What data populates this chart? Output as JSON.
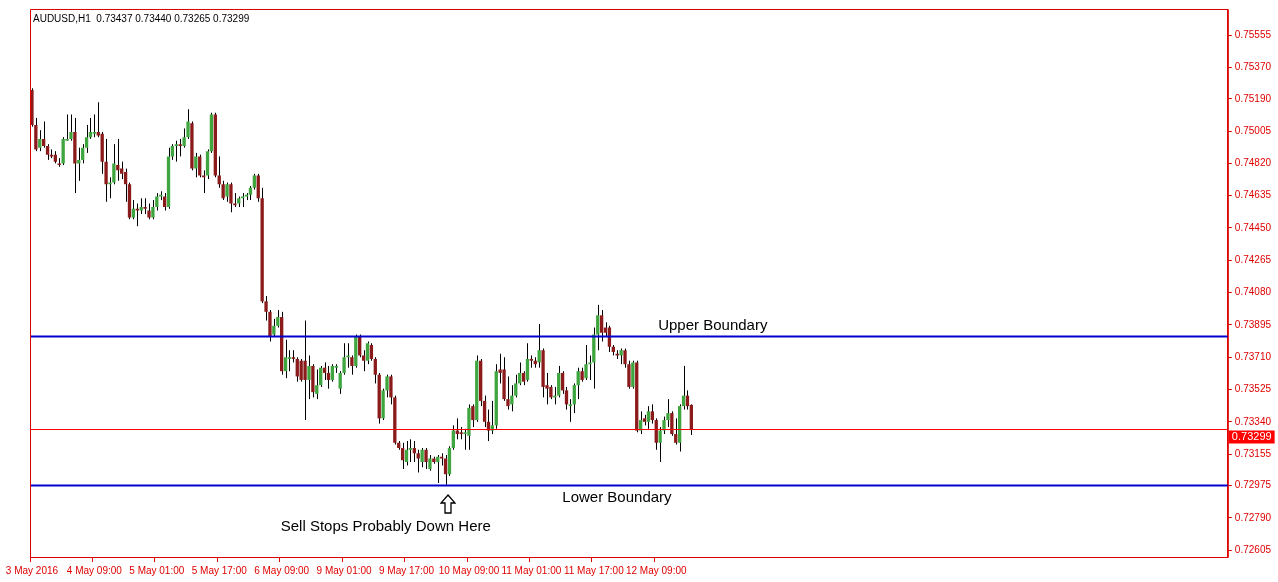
{
  "chart_data": {
    "type": "candlestick",
    "title": "AUDUSD,H1  0.73437 0.73440 0.73265 0.73299",
    "categories": [
      "3 May 2016",
      null,
      null,
      null,
      null,
      null,
      null,
      null,
      null,
      null,
      null,
      null,
      null,
      null,
      null,
      null,
      "4 May 09:00",
      null,
      null,
      null,
      null,
      null,
      null,
      null,
      null,
      null,
      null,
      null,
      null,
      null,
      null,
      null,
      "5 May 01:00",
      null,
      null,
      null,
      null,
      null,
      null,
      null,
      null,
      null,
      null,
      null,
      null,
      null,
      null,
      null,
      "5 May 17:00",
      null,
      null,
      null,
      null,
      null,
      null,
      null,
      null,
      null,
      null,
      null,
      null,
      null,
      null,
      null,
      "6 May 09:00",
      null,
      null,
      null,
      null,
      null,
      null,
      null,
      null,
      null,
      null,
      null,
      null,
      null,
      null,
      null,
      "9 May 01:00",
      null,
      null,
      null,
      null,
      null,
      null,
      null,
      null,
      null,
      null,
      null,
      null,
      null,
      null,
      null,
      "9 May 17:00",
      null,
      null,
      null,
      null,
      null,
      null,
      null,
      null,
      null,
      null,
      null,
      null,
      null,
      null,
      null,
      "10 May 09:00",
      null,
      null,
      null,
      null,
      null,
      null,
      null,
      null,
      null,
      null,
      null,
      null,
      null,
      null,
      null,
      "11 May 01:00",
      null,
      null,
      null,
      null,
      null,
      null,
      null,
      null,
      null,
      null,
      null,
      null,
      null,
      null,
      null,
      "11 May 17:00",
      null,
      null,
      null,
      null,
      null,
      null,
      null,
      null,
      null,
      null,
      null,
      null,
      null,
      null,
      null,
      "12 May 09:00",
      null,
      null,
      null,
      null,
      null,
      null,
      null,
      null,
      null,
      null,
      null,
      null,
      null,
      null,
      null,
      null,
      null,
      null,
      null,
      null,
      null,
      null,
      null,
      null,
      null,
      null,
      null,
      null,
      null,
      null,
      null,
      null,
      null,
      null,
      null,
      null,
      null,
      null,
      null,
      null,
      null,
      null,
      null,
      null,
      null,
      null,
      null,
      null,
      null,
      null,
      null,
      null,
      null,
      null,
      null,
      null,
      null,
      null,
      null,
      null,
      null,
      null,
      null,
      null,
      null,
      null,
      null,
      null,
      null,
      null,
      null,
      null,
      null,
      null,
      null,
      null,
      null,
      null,
      null,
      null,
      null,
      null,
      null,
      null,
      null,
      null,
      null,
      null,
      null,
      null,
      null,
      null,
      null,
      null,
      null,
      null,
      null,
      null,
      null,
      null,
      null,
      null,
      null,
      null,
      null,
      null,
      null,
      null,
      null,
      null,
      null,
      null,
      null,
      null,
      null,
      null,
      null,
      null,
      null,
      null,
      null,
      null,
      null,
      null,
      null,
      null,
      null,
      null,
      null,
      null,
      null,
      null,
      null,
      null,
      null,
      null,
      null,
      null,
      null,
      null,
      null,
      null,
      null,
      null,
      null,
      null
    ],
    "ohlc": [
      [
        0.7524,
        0.7525,
        0.7503,
        0.7504
      ],
      [
        0.7504,
        0.7508,
        0.7489,
        0.749
      ],
      [
        0.7491,
        0.7501,
        0.7489,
        0.7496
      ],
      [
        0.7496,
        0.7506,
        0.7491,
        0.7492
      ],
      [
        0.7492,
        0.7493,
        0.7484,
        0.7487
      ],
      [
        0.7487,
        0.749,
        0.7485,
        0.7486
      ],
      [
        0.7487,
        0.7489,
        0.7482,
        0.7483
      ],
      [
        0.7482,
        0.7485,
        0.748,
        0.7481
      ],
      [
        0.7482,
        0.7497,
        0.7481,
        0.7496
      ],
      [
        0.7495,
        0.751,
        0.7495,
        0.7496
      ],
      [
        0.7496,
        0.751,
        0.7495,
        0.75
      ],
      [
        0.75,
        0.7508,
        0.7465,
        0.7482
      ],
      [
        0.7482,
        0.7491,
        0.7472,
        0.7484
      ],
      [
        0.7484,
        0.7493,
        0.7482,
        0.7491
      ],
      [
        0.7491,
        0.7504,
        0.7488,
        0.7497
      ],
      [
        0.7497,
        0.7508,
        0.7496,
        0.75
      ],
      [
        0.7499,
        0.751,
        0.7497,
        0.75
      ],
      [
        0.75,
        0.7517,
        0.7497,
        0.7498
      ],
      [
        0.7499,
        0.75,
        0.7476,
        0.7483
      ],
      [
        0.7483,
        0.7496,
        0.746,
        0.747
      ],
      [
        0.747,
        0.7474,
        0.7462,
        0.7471
      ],
      [
        0.7471,
        0.7493,
        0.747,
        0.7482
      ],
      [
        0.7481,
        0.7496,
        0.7472,
        0.7478
      ],
      [
        0.7479,
        0.7483,
        0.7473,
        0.7476
      ],
      [
        0.7477,
        0.7479,
        0.746,
        0.747
      ],
      [
        0.747,
        0.7471,
        0.745,
        0.7451
      ],
      [
        0.7451,
        0.7461,
        0.745,
        0.7456
      ],
      [
        0.7456,
        0.7459,
        0.7446,
        0.7455
      ],
      [
        0.7455,
        0.7462,
        0.7453,
        0.7457
      ],
      [
        0.7457,
        0.7462,
        0.7453,
        0.7456
      ],
      [
        0.7455,
        0.7459,
        0.745,
        0.7451
      ],
      [
        0.7451,
        0.7461,
        0.745,
        0.7457
      ],
      [
        0.7457,
        0.7465,
        0.7455,
        0.7463
      ],
      [
        0.7463,
        0.7466,
        0.7461,
        0.7464
      ],
      [
        0.7463,
        0.7465,
        0.7455,
        0.7457
      ],
      [
        0.7457,
        0.7491,
        0.7456,
        0.7486
      ],
      [
        0.7486,
        0.7493,
        0.7484,
        0.7492
      ],
      [
        0.7492,
        0.7495,
        0.7483,
        0.7493
      ],
      [
        0.7493,
        0.7496,
        0.7486,
        0.7492
      ],
      [
        0.7492,
        0.7502,
        0.7491,
        0.7497
      ],
      [
        0.7497,
        0.7513,
        0.7496,
        0.7506
      ],
      [
        0.7505,
        0.7506,
        0.7478,
        0.7479
      ],
      [
        0.7479,
        0.7488,
        0.7474,
        0.7486
      ],
      [
        0.7486,
        0.7487,
        0.7474,
        0.7475
      ],
      [
        0.7475,
        0.7478,
        0.7465,
        0.7474
      ],
      [
        0.7475,
        0.749,
        0.7473,
        0.7489
      ],
      [
        0.7489,
        0.7511,
        0.7488,
        0.751
      ],
      [
        0.751,
        0.7511,
        0.7474,
        0.7475
      ],
      [
        0.7475,
        0.7486,
        0.7468,
        0.747
      ],
      [
        0.747,
        0.7472,
        0.7461,
        0.7462
      ],
      [
        0.7463,
        0.7471,
        0.746,
        0.747
      ],
      [
        0.747,
        0.7471,
        0.7454,
        0.7459
      ],
      [
        0.7459,
        0.7465,
        0.7457,
        0.7458
      ],
      [
        0.7459,
        0.7463,
        0.7457,
        0.7462
      ],
      [
        0.7462,
        0.7465,
        0.7457,
        0.7463
      ],
      [
        0.7463,
        0.7465,
        0.7461,
        0.7464
      ],
      [
        0.7464,
        0.7469,
        0.7461,
        0.7468
      ],
      [
        0.7468,
        0.7476,
        0.7467,
        0.7475
      ],
      [
        0.7475,
        0.7476,
        0.746,
        0.7462
      ],
      [
        0.7462,
        0.7468,
        0.7402,
        0.7403
      ],
      [
        0.7403,
        0.7406,
        0.7392,
        0.7397
      ],
      [
        0.7397,
        0.7398,
        0.738,
        0.7383
      ],
      [
        0.7384,
        0.7393,
        0.7383,
        0.7389
      ],
      [
        0.7389,
        0.7398,
        0.7388,
        0.7394
      ],
      [
        0.7394,
        0.7397,
        0.7361,
        0.7363
      ],
      [
        0.7363,
        0.7381,
        0.7359,
        0.7371
      ],
      [
        0.737,
        0.7375,
        0.7363,
        0.7371
      ],
      [
        0.7371,
        0.7375,
        0.7368,
        0.737
      ],
      [
        0.737,
        0.7371,
        0.7357,
        0.736
      ],
      [
        0.7369,
        0.737,
        0.7357,
        0.7358
      ],
      [
        0.7369,
        0.7392,
        0.7335,
        0.7358
      ],
      [
        0.7358,
        0.7372,
        0.7347,
        0.7366
      ],
      [
        0.7366,
        0.7367,
        0.7348,
        0.7351
      ],
      [
        0.735,
        0.7364,
        0.7347,
        0.7355
      ],
      [
        0.7355,
        0.7366,
        0.7354,
        0.7365
      ],
      [
        0.7365,
        0.7368,
        0.7358,
        0.7362
      ],
      [
        0.7362,
        0.7366,
        0.7353,
        0.7358
      ],
      [
        0.7358,
        0.7367,
        0.7357,
        0.7366
      ],
      [
        0.7365,
        0.7367,
        0.7362,
        0.7366
      ],
      [
        0.7353,
        0.7363,
        0.735,
        0.7362
      ],
      [
        0.7362,
        0.7379,
        0.7361,
        0.7371
      ],
      [
        0.7371,
        0.7379,
        0.7365,
        0.7372
      ],
      [
        0.7371,
        0.7372,
        0.7361,
        0.7366
      ],
      [
        0.7366,
        0.7384,
        0.7365,
        0.7383
      ],
      [
        0.7383,
        0.7384,
        0.7371,
        0.7372
      ],
      [
        0.7372,
        0.7375,
        0.7363,
        0.7369
      ],
      [
        0.7369,
        0.738,
        0.7367,
        0.7379
      ],
      [
        0.7378,
        0.7379,
        0.7369,
        0.737
      ],
      [
        0.737,
        0.7371,
        0.7356,
        0.7361
      ],
      [
        0.7361,
        0.7362,
        0.7333,
        0.7336
      ],
      [
        0.7336,
        0.7353,
        0.7335,
        0.7352
      ],
      [
        0.7352,
        0.7361,
        0.7348,
        0.736
      ],
      [
        0.736,
        0.7361,
        0.7344,
        0.7348
      ],
      [
        0.7348,
        0.7349,
        0.7321,
        0.7322
      ],
      [
        0.7322,
        0.7323,
        0.7318,
        0.7319
      ],
      [
        0.7319,
        0.7322,
        0.7307,
        0.7312
      ],
      [
        0.7311,
        0.7323,
        0.7309,
        0.7318
      ],
      [
        0.7318,
        0.7324,
        0.7311,
        0.7319
      ],
      [
        0.7319,
        0.7323,
        0.7311,
        0.7316
      ],
      [
        0.7316,
        0.7318,
        0.7305,
        0.7313
      ],
      [
        0.7311,
        0.7319,
        0.7308,
        0.7318
      ],
      [
        0.7318,
        0.7319,
        0.7307,
        0.7311
      ],
      [
        0.7307,
        0.7315,
        0.7306,
        0.7313
      ],
      [
        0.7313,
        0.7314,
        0.731,
        0.7311
      ],
      [
        0.7311,
        0.7315,
        0.7299,
        0.7314
      ],
      [
        0.7314,
        0.7316,
        0.7309,
        0.7313
      ],
      [
        0.7313,
        0.7315,
        0.7298,
        0.7304
      ],
      [
        0.7304,
        0.732,
        0.7303,
        0.7319
      ],
      [
        0.7319,
        0.7332,
        0.7318,
        0.7329
      ],
      [
        0.7329,
        0.7336,
        0.7324,
        0.7327
      ],
      [
        0.7328,
        0.7331,
        0.7324,
        0.7327
      ],
      [
        0.7327,
        0.733,
        0.7318,
        0.7328
      ],
      [
        0.7326,
        0.7344,
        0.7318,
        0.7342
      ],
      [
        0.7343,
        0.7344,
        0.7331,
        0.7335
      ],
      [
        0.7335,
        0.7372,
        0.7334,
        0.7369
      ],
      [
        0.7369,
        0.737,
        0.7343,
        0.7346
      ],
      [
        0.7346,
        0.7349,
        0.7331,
        0.7334
      ],
      [
        0.7334,
        0.7341,
        0.7323,
        0.7329
      ],
      [
        0.7329,
        0.7346,
        0.7327,
        0.7332
      ],
      [
        0.7332,
        0.7367,
        0.733,
        0.7363
      ],
      [
        0.7364,
        0.7373,
        0.7356,
        0.7362
      ],
      [
        0.7364,
        0.7371,
        0.7346,
        0.7347
      ],
      [
        0.7347,
        0.736,
        0.7341,
        0.7343
      ],
      [
        0.7344,
        0.7355,
        0.734,
        0.7349
      ],
      [
        0.7349,
        0.7361,
        0.7348,
        0.7356
      ],
      [
        0.7356,
        0.7368,
        0.7355,
        0.7362
      ],
      [
        0.7362,
        0.7363,
        0.7355,
        0.7357
      ],
      [
        0.7358,
        0.7379,
        0.7357,
        0.737
      ],
      [
        0.737,
        0.7372,
        0.7365,
        0.7369
      ],
      [
        0.7369,
        0.7371,
        0.7365,
        0.7367
      ],
      [
        0.7368,
        0.739,
        0.7365,
        0.7375
      ],
      [
        0.7375,
        0.7376,
        0.7348,
        0.7354
      ],
      [
        0.7355,
        0.7362,
        0.7344,
        0.7353
      ],
      [
        0.7354,
        0.7355,
        0.7347,
        0.7348
      ],
      [
        0.7348,
        0.7354,
        0.7344,
        0.7349
      ],
      [
        0.7349,
        0.7366,
        0.7348,
        0.7362
      ],
      [
        0.7362,
        0.7363,
        0.735,
        0.7352
      ],
      [
        0.7352,
        0.7354,
        0.7341,
        0.7344
      ],
      [
        0.7343,
        0.7347,
        0.7334,
        0.7344
      ],
      [
        0.7344,
        0.7356,
        0.7339,
        0.7355
      ],
      [
        0.7355,
        0.7365,
        0.7347,
        0.7363
      ],
      [
        0.7363,
        0.7365,
        0.7357,
        0.7358
      ],
      [
        0.7359,
        0.7378,
        0.7358,
        0.7367
      ],
      [
        0.7367,
        0.7372,
        0.7358,
        0.7368
      ],
      [
        0.7368,
        0.7388,
        0.7353,
        0.7384
      ],
      [
        0.7384,
        0.7401,
        0.7375,
        0.7395
      ],
      [
        0.7395,
        0.7398,
        0.738,
        0.7385
      ],
      [
        0.7388,
        0.7391,
        0.7383,
        0.7385
      ],
      [
        0.7388,
        0.7389,
        0.7374,
        0.7377
      ],
      [
        0.7377,
        0.7378,
        0.7372,
        0.7374
      ],
      [
        0.7373,
        0.7375,
        0.737,
        0.7372
      ],
      [
        0.7372,
        0.7376,
        0.7367,
        0.7375
      ],
      [
        0.7375,
        0.7376,
        0.7365,
        0.7367
      ],
      [
        0.7367,
        0.7369,
        0.7353,
        0.7354
      ],
      [
        0.7354,
        0.7369,
        0.7353,
        0.7368
      ],
      [
        0.7368,
        0.7369,
        0.7328,
        0.7329
      ],
      [
        0.7329,
        0.734,
        0.7327,
        0.7335
      ],
      [
        0.7336,
        0.7338,
        0.7332,
        0.7334
      ],
      [
        0.7334,
        0.7343,
        0.733,
        0.734
      ],
      [
        0.734,
        0.7344,
        0.7333,
        0.7335
      ],
      [
        0.7335,
        0.7336,
        0.7318,
        0.7322
      ],
      [
        0.7322,
        0.7331,
        0.7311,
        0.7329
      ],
      [
        0.7329,
        0.7337,
        0.7327,
        0.7335
      ],
      [
        0.7335,
        0.7347,
        0.7331,
        0.7339
      ],
      [
        0.7339,
        0.734,
        0.7326,
        0.7327
      ],
      [
        0.7327,
        0.7336,
        0.7321,
        0.7322
      ],
      [
        0.7322,
        0.7344,
        0.7317,
        0.7343
      ],
      [
        0.7343,
        0.7366,
        0.7341,
        0.7349
      ],
      [
        0.7349,
        0.7352,
        0.7341,
        0.7343
      ],
      [
        0.73437,
        0.7344,
        0.73265,
        0.73299
      ],
      null,
      null,
      null,
      null,
      null,
      null,
      null,
      null,
      null,
      null,
      null,
      null,
      null,
      null,
      null,
      null,
      null,
      null,
      null,
      null,
      null,
      null,
      null,
      null,
      null,
      null,
      null,
      null,
      null,
      null,
      null,
      null,
      null,
      null,
      null,
      null,
      null,
      null,
      null,
      null,
      null,
      null,
      null,
      null,
      null,
      null,
      null,
      null,
      null,
      null,
      null,
      null,
      null,
      null,
      null,
      null,
      null,
      null,
      null,
      null,
      null,
      null,
      null,
      null,
      null,
      null,
      null,
      null,
      null,
      null,
      null,
      null,
      null,
      null,
      null,
      null,
      null,
      null,
      null,
      null,
      null,
      null,
      null,
      null,
      null,
      null,
      null,
      null,
      null,
      null,
      null,
      null,
      null,
      null,
      null,
      null,
      null,
      null,
      null,
      null,
      null,
      null,
      null,
      null,
      null,
      null,
      null,
      null,
      null,
      null,
      null,
      null,
      null,
      null,
      null,
      null,
      null,
      null,
      null,
      null,
      null,
      null,
      null,
      null,
      null,
      null,
      null,
      null,
      null,
      null,
      null,
      null,
      null,
      null,
      null,
      null,
      null
    ],
    "ylim": [
      0.72566,
      0.75704
    ],
    "yticks": [
      0.75555,
      {
        "value": 0.7537,
        "label": "0.75370"
      },
      {
        "value": 0.7519,
        "label": "0.75190"
      },
      0.75005,
      {
        "value": 0.7482,
        "label": "0.74820"
      },
      0.74635,
      {
        "value": 0.7445,
        "label": "0.74450"
      },
      0.74265,
      {
        "value": 0.7408,
        "label": "0.74080"
      },
      0.73895,
      {
        "value": 0.7371,
        "label": "0.73710"
      },
      0.73525,
      {
        "value": 0.7334,
        "label": "0.73340"
      },
      0.73155,
      0.72975,
      {
        "value": 0.7279,
        "label": "0.72790"
      },
      0.72605
    ],
    "ref_lines": [
      {
        "axis": "y",
        "value": 0.7383,
        "label": "Upper Boundary",
        "color": "#0000cc"
      },
      {
        "axis": "y",
        "value": 0.7298,
        "label": "Lower Boundary",
        "color": "#0000cc"
      },
      {
        "axis": "y",
        "value": 0.73299,
        "label": "0.73299",
        "color": "#ff0000"
      }
    ],
    "annotations": [
      "Sell Stops Probably Down Here"
    ],
    "grid": false,
    "legend": false
  }
}
